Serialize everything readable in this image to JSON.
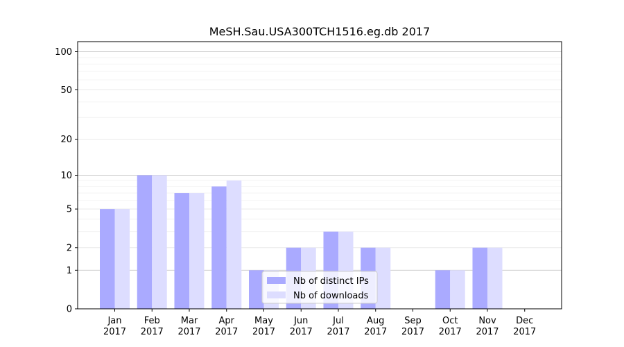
{
  "chart_data": {
    "type": "bar",
    "title": "MeSH.Sau.USA300TCH1516.eg.db 2017",
    "xlabel": "",
    "ylabel": "",
    "categories": [
      {
        "month": "Jan",
        "year": "2017"
      },
      {
        "month": "Feb",
        "year": "2017"
      },
      {
        "month": "Mar",
        "year": "2017"
      },
      {
        "month": "Apr",
        "year": "2017"
      },
      {
        "month": "May",
        "year": "2017"
      },
      {
        "month": "Jun",
        "year": "2017"
      },
      {
        "month": "Jul",
        "year": "2017"
      },
      {
        "month": "Aug",
        "year": "2017"
      },
      {
        "month": "Sep",
        "year": "2017"
      },
      {
        "month": "Oct",
        "year": "2017"
      },
      {
        "month": "Nov",
        "year": "2017"
      },
      {
        "month": "Dec",
        "year": "2017"
      }
    ],
    "series": [
      {
        "name": "Nb of distinct IPs",
        "color": "#aaaaff",
        "values": [
          5,
          10,
          7,
          8,
          1,
          2,
          3,
          2,
          0,
          1,
          2,
          0
        ]
      },
      {
        "name": "Nb of downloads",
        "color": "#ddddff",
        "values": [
          5,
          10,
          7,
          9,
          1,
          2,
          3,
          2,
          0,
          1,
          2,
          0
        ]
      }
    ],
    "y_scale": "log(1+y)",
    "ylim": [
      0,
      120
    ],
    "yticks": [
      0,
      1,
      2,
      5,
      10,
      20,
      50,
      100
    ],
    "grid": true,
    "legend_position": "lower-center"
  }
}
